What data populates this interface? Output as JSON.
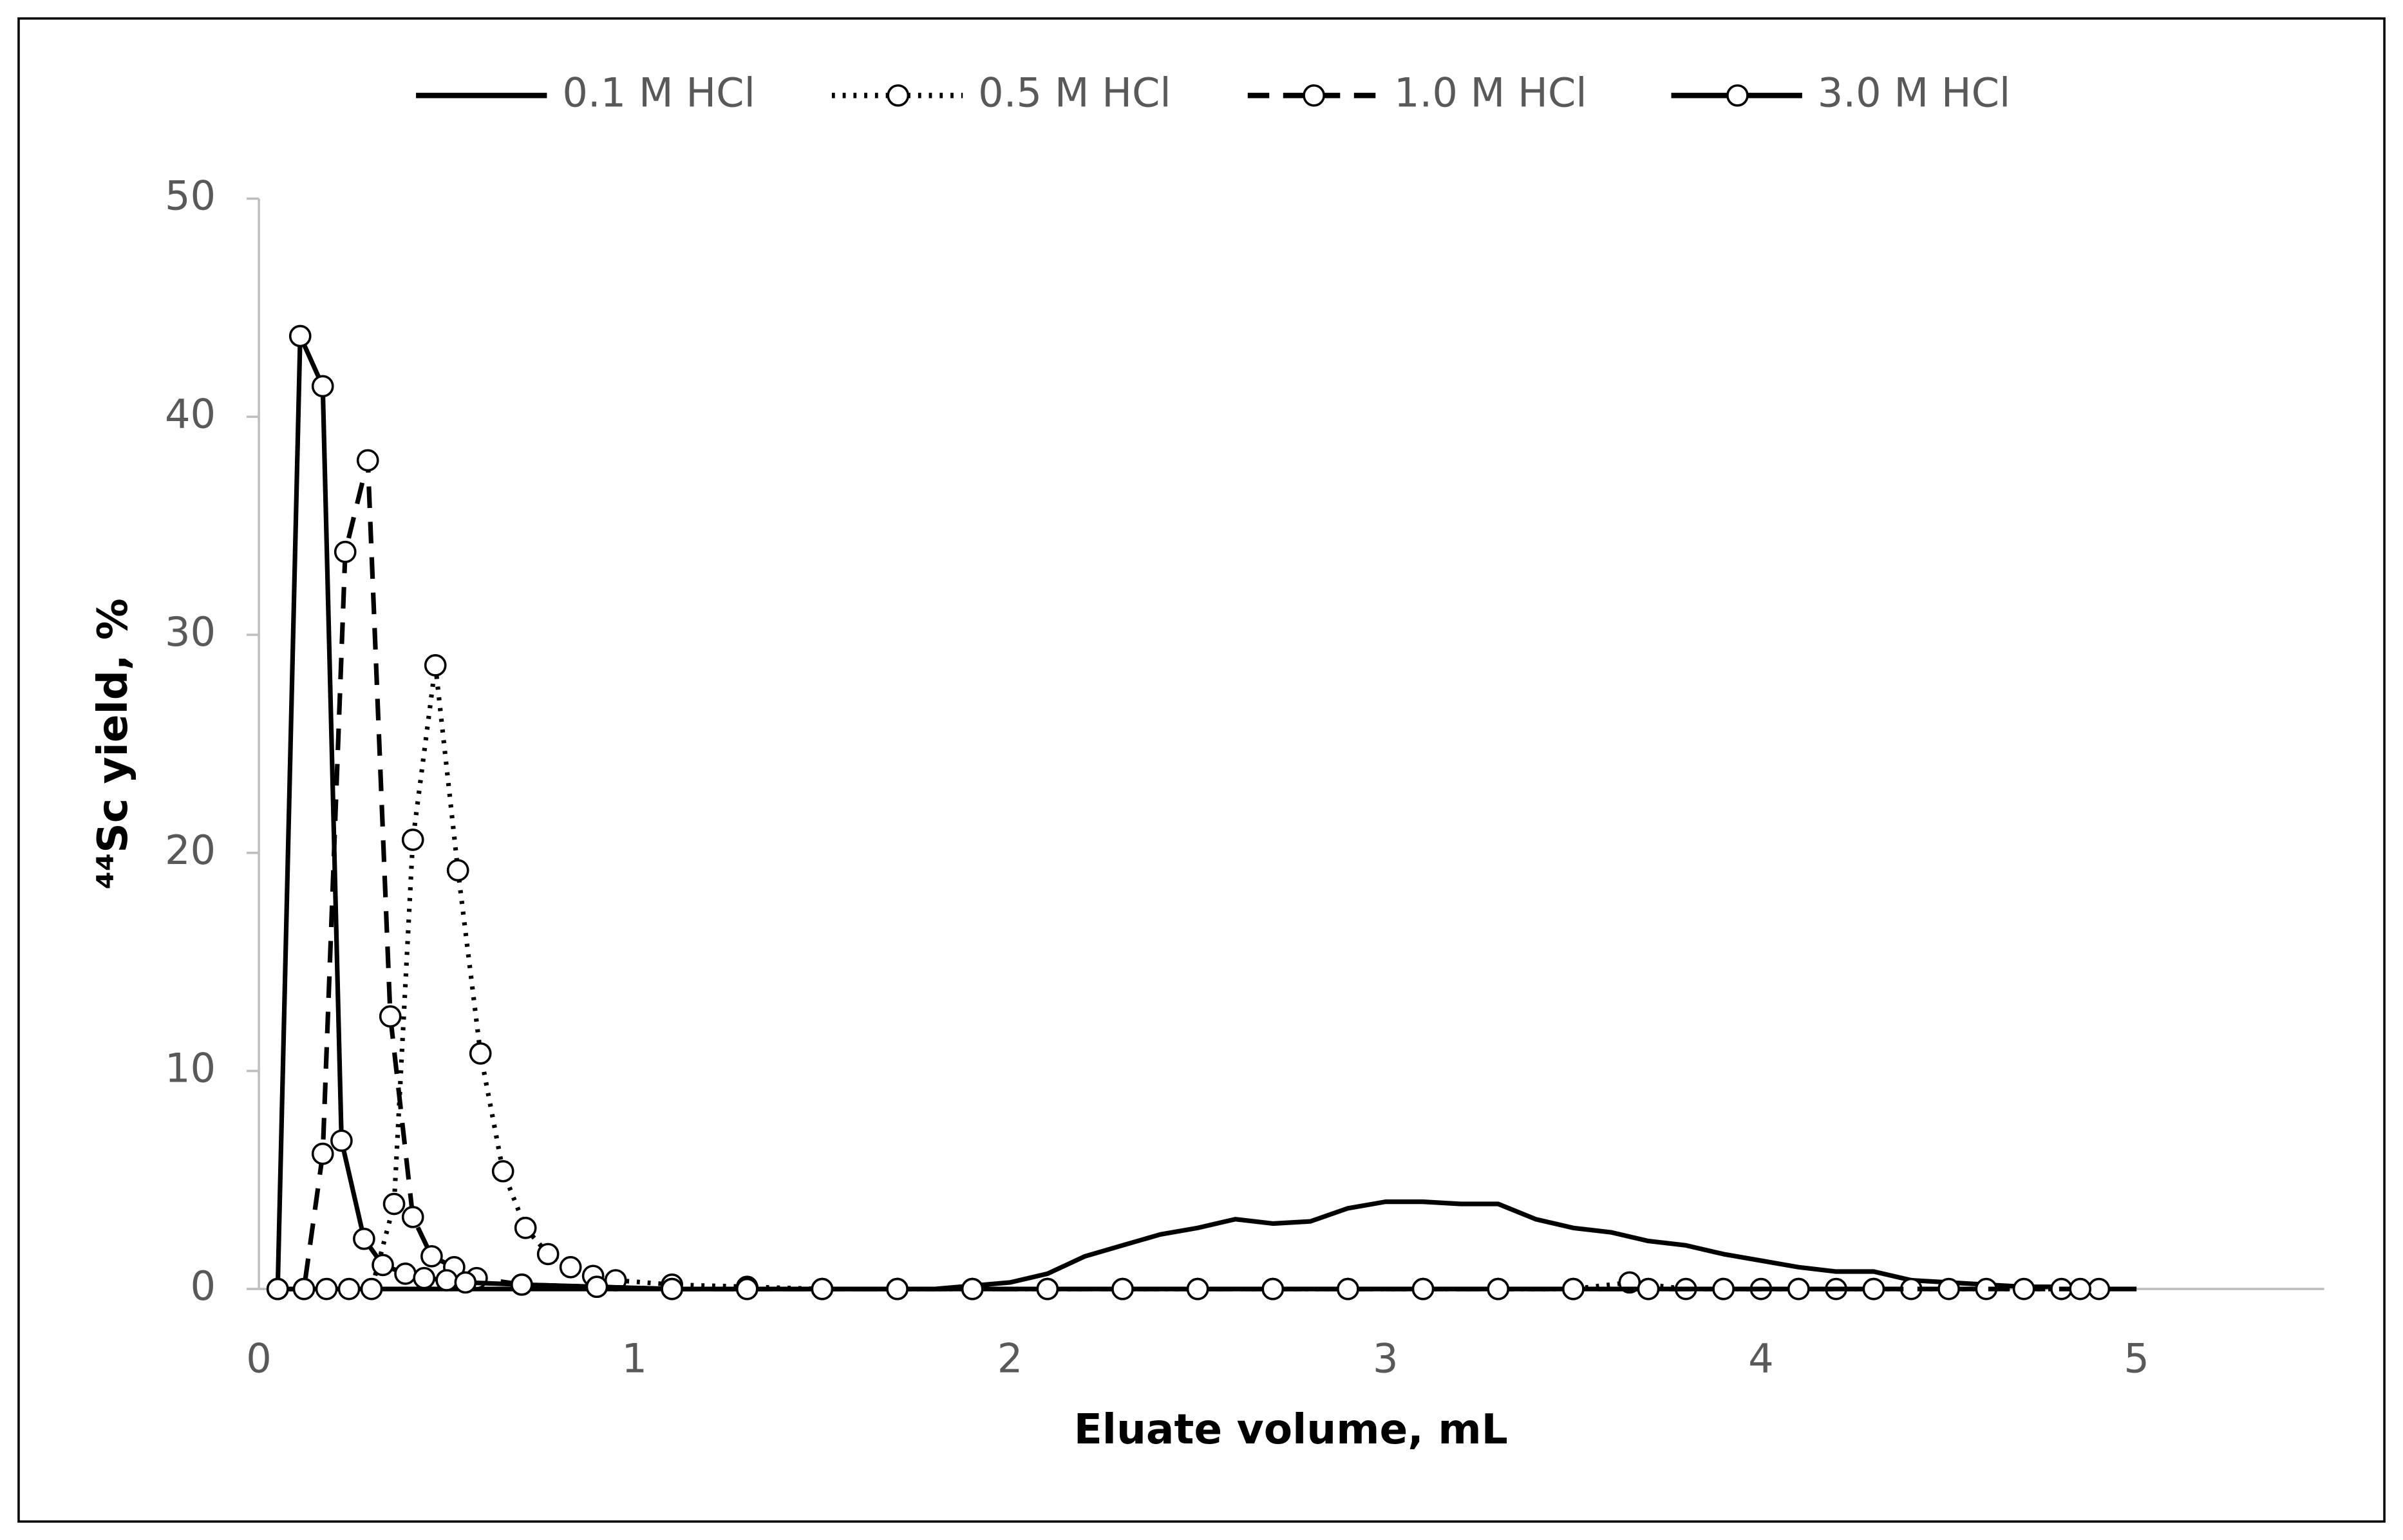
{
  "chart_data": {
    "type": "line",
    "xlabel": "Eluate volume, mL",
    "ylabel": "⁴⁴Sc yield, %",
    "xlim": [
      0,
      5.5
    ],
    "xticks": [
      0,
      1,
      2,
      3,
      4,
      5
    ],
    "ylim": [
      0,
      50
    ],
    "yticks": [
      0,
      10,
      20,
      30,
      40,
      50
    ],
    "legend": "top",
    "series": [
      {
        "name": "0.1 M HCl",
        "color": "#000000",
        "dash": "solid",
        "marker": false,
        "x": [
          0.05,
          0.3,
          0.6,
          0.9,
          1.2,
          1.5,
          1.8,
          2.0,
          2.1,
          2.2,
          2.3,
          2.4,
          2.5,
          2.6,
          2.7,
          2.8,
          2.9,
          3.0,
          3.1,
          3.2,
          3.3,
          3.4,
          3.5,
          3.6,
          3.7,
          3.8,
          3.9,
          4.0,
          4.1,
          4.2,
          4.3,
          4.4,
          4.5,
          4.6,
          4.7,
          4.8,
          4.9,
          5.0
        ],
        "values": [
          0,
          0,
          0,
          0,
          0,
          0,
          0,
          0.3,
          0.7,
          1.5,
          2.0,
          2.5,
          2.8,
          3.2,
          3.0,
          3.1,
          3.7,
          4.0,
          4.0,
          3.9,
          3.9,
          3.2,
          2.8,
          2.6,
          2.2,
          2.0,
          1.6,
          1.3,
          1.0,
          0.8,
          0.8,
          0.4,
          0.3,
          0.2,
          0.1,
          0.1,
          0,
          0
        ]
      },
      {
        "name": "0.5 M HCl",
        "color": "#000000",
        "dash": "dot",
        "marker": true,
        "x": [
          0.05,
          0.12,
          0.18,
          0.24,
          0.3,
          0.36,
          0.41,
          0.47,
          0.53,
          0.59,
          0.65,
          0.71,
          0.77,
          0.83,
          0.89,
          0.95,
          1.1,
          1.3,
          1.5,
          1.7,
          1.9,
          2.1,
          2.3,
          2.5,
          2.7,
          2.9,
          3.1,
          3.3,
          3.5,
          3.65,
          3.8,
          4.0,
          4.2,
          4.4,
          4.6,
          4.8,
          4.9
        ],
        "values": [
          0,
          0,
          0,
          0,
          0,
          3.9,
          20.6,
          28.6,
          19.2,
          10.8,
          5.4,
          2.8,
          1.6,
          1.0,
          0.6,
          0.4,
          0.2,
          0.1,
          0,
          0,
          0,
          0,
          0,
          0,
          0,
          0,
          0,
          0,
          0,
          0.3,
          0,
          0,
          0,
          0,
          0,
          0,
          0
        ]
      },
      {
        "name": "1.0 M HCl",
        "color": "#000000",
        "dash": "dash",
        "marker": true,
        "x": [
          0.05,
          0.12,
          0.17,
          0.23,
          0.29,
          0.35,
          0.41,
          0.46,
          0.52,
          0.58,
          0.7,
          0.9,
          1.1,
          1.3,
          1.5,
          1.7,
          1.9,
          2.1,
          2.3,
          2.5,
          2.7,
          2.9,
          3.1,
          3.3,
          3.5,
          3.7,
          3.9,
          4.1,
          4.3,
          4.5,
          4.7,
          4.85
        ],
        "values": [
          0,
          0,
          6.2,
          33.8,
          38.0,
          12.5,
          3.3,
          1.5,
          1.0,
          0.5,
          0.2,
          0.1,
          0,
          0,
          0,
          0,
          0,
          0,
          0,
          0,
          0,
          0,
          0,
          0,
          0,
          0,
          0,
          0,
          0,
          0,
          0,
          0
        ]
      },
      {
        "name": "3.0 M HCl",
        "color": "#000000",
        "dash": "solid",
        "marker": true,
        "x": [
          0.05,
          0.11,
          0.17,
          0.22,
          0.28,
          0.33,
          0.39,
          0.44,
          0.5,
          0.55,
          0.7,
          0.9,
          1.1,
          1.3,
          1.5,
          1.7,
          1.9,
          2.1,
          2.3,
          2.5,
          2.7,
          2.9,
          3.1,
          3.3,
          3.5,
          3.7,
          3.9,
          4.1,
          4.3
        ],
        "values": [
          0,
          43.7,
          41.4,
          6.8,
          2.3,
          1.1,
          0.7,
          0.5,
          0.4,
          0.3,
          0.2,
          0.1,
          0,
          0,
          0,
          0,
          0,
          0,
          0,
          0,
          0,
          0,
          0,
          0,
          0,
          0,
          0,
          0,
          0
        ]
      }
    ]
  }
}
